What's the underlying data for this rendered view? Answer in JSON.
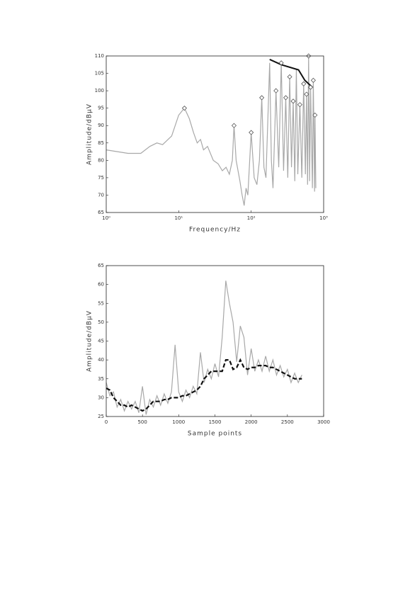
{
  "chart_data": [
    {
      "type": "line",
      "xlabel": "Frequency/Hz",
      "ylabel": "Amplitude/dBμV",
      "xscale": "log",
      "xlim": [
        1,
        1000
      ],
      "xticks": [
        {
          "value": 1,
          "label": "10⁰"
        },
        {
          "value": 10,
          "label": "10¹"
        },
        {
          "value": 100,
          "label": "10²"
        },
        {
          "value": 1000,
          "label": "10³"
        }
      ],
      "ylim": [
        65,
        110
      ],
      "yticks": [
        65,
        70,
        75,
        80,
        85,
        90,
        95,
        100,
        105,
        110
      ],
      "series": [
        {
          "color": "#a8a8a8",
          "linestyle": "solid",
          "x": [
            1,
            2,
            3,
            4,
            5,
            6,
            8,
            10,
            12,
            14,
            16,
            18,
            20,
            22,
            25,
            30,
            35,
            40,
            45,
            50,
            55,
            58,
            62,
            70,
            75,
            80,
            85,
            90,
            100,
            110,
            120,
            130,
            140,
            150,
            160,
            180,
            190,
            200,
            220,
            240,
            260,
            280,
            300,
            320,
            340,
            360,
            380,
            400,
            420,
            440,
            470,
            500,
            530,
            560,
            580,
            600,
            620,
            640,
            660,
            700,
            720,
            750,
            760,
            780
          ],
          "values": [
            83,
            82,
            82,
            84,
            85,
            84.5,
            87,
            93,
            95,
            92,
            88,
            85,
            86,
            83,
            84,
            80,
            79,
            77,
            78,
            76,
            80,
            90,
            80,
            74,
            70,
            67,
            72,
            70,
            88,
            75,
            73,
            80,
            98,
            78,
            75,
            108,
            80,
            72,
            100,
            78,
            108,
            77,
            98,
            75,
            104,
            78,
            97,
            74,
            106,
            76,
            96,
            75,
            102,
            76,
            99,
            73,
            110,
            74,
            101,
            72,
            103,
            71,
            93,
            72
          ]
        },
        {
          "color": "#111111",
          "linestyle": "solid",
          "x": [
            180,
            260,
            450,
            550,
            700
          ],
          "values": [
            109,
            107.5,
            106,
            103,
            101
          ]
        },
        {
          "color": "#555555",
          "linestyle": "none",
          "marker": "diamond",
          "x": [
            12,
            58,
            100,
            140,
            220,
            260,
            300,
            340,
            380,
            470,
            530,
            580,
            620,
            660,
            720,
            760
          ],
          "values": [
            95,
            90,
            88,
            98,
            100,
            108,
            98,
            104,
            97,
            96,
            102,
            99,
            110,
            101,
            103,
            93
          ]
        }
      ]
    },
    {
      "type": "line",
      "xlabel": "Sample points",
      "ylabel": "Amplitude/dBμV",
      "xlim": [
        0,
        3000
      ],
      "xticks": [
        0,
        500,
        1000,
        1500,
        2000,
        2500,
        3000
      ],
      "ylim": [
        25,
        65
      ],
      "yticks": [
        25,
        30,
        35,
        40,
        45,
        50,
        55,
        60,
        65
      ],
      "series": [
        {
          "color": "#a8a8a8",
          "linestyle": "solid",
          "x": [
            0,
            50,
            100,
            150,
            200,
            250,
            300,
            350,
            400,
            450,
            500,
            550,
            600,
            650,
            700,
            750,
            800,
            850,
            900,
            950,
            1000,
            1050,
            1100,
            1150,
            1200,
            1250,
            1300,
            1350,
            1400,
            1450,
            1500,
            1550,
            1600,
            1650,
            1700,
            1750,
            1800,
            1850,
            1900,
            1950,
            2000,
            2050,
            2100,
            2150,
            2200,
            2250,
            2300,
            2350,
            2400,
            2450,
            2500,
            2550,
            2600,
            2650,
            2700
          ],
          "values": [
            34,
            30.5,
            31.5,
            27.5,
            29.5,
            26.5,
            29,
            27,
            29,
            26,
            33,
            25.5,
            29.5,
            27.5,
            30.5,
            28,
            31,
            28.5,
            31.5,
            44,
            31.5,
            29,
            32,
            30,
            33,
            31,
            42,
            34,
            37.5,
            35,
            39,
            35.5,
            46,
            61,
            55,
            50,
            39.5,
            49,
            46,
            36,
            43,
            37,
            40,
            37,
            41,
            37,
            40,
            36,
            38.5,
            35.5,
            37.5,
            34,
            36.5,
            34,
            36
          ]
        },
        {
          "color": "#111111",
          "linestyle": "dashed",
          "x": [
            0,
            50,
            100,
            150,
            200,
            250,
            300,
            350,
            400,
            450,
            500,
            550,
            600,
            650,
            700,
            750,
            800,
            850,
            900,
            950,
            1000,
            1050,
            1100,
            1150,
            1200,
            1250,
            1300,
            1350,
            1400,
            1450,
            1500,
            1550,
            1600,
            1650,
            1700,
            1750,
            1800,
            1850,
            1900,
            1950,
            2000,
            2050,
            2100,
            2150,
            2200,
            2250,
            2300,
            2350,
            2400,
            2450,
            2500,
            2550,
            2600,
            2650,
            2700
          ],
          "values": [
            32.5,
            32,
            30,
            29,
            28,
            28,
            27.5,
            28,
            27.5,
            27,
            26.5,
            27,
            28,
            29,
            29,
            29,
            29.5,
            29.5,
            30,
            30,
            30,
            30.5,
            30.5,
            31,
            31.5,
            32,
            33,
            35,
            36,
            37,
            37,
            37,
            37,
            40,
            40,
            37.5,
            38,
            40,
            38,
            37.5,
            38,
            38,
            38.5,
            38.5,
            38.5,
            38,
            38,
            37.5,
            37,
            36.5,
            36,
            35.5,
            35,
            35,
            35
          ]
        }
      ]
    }
  ]
}
